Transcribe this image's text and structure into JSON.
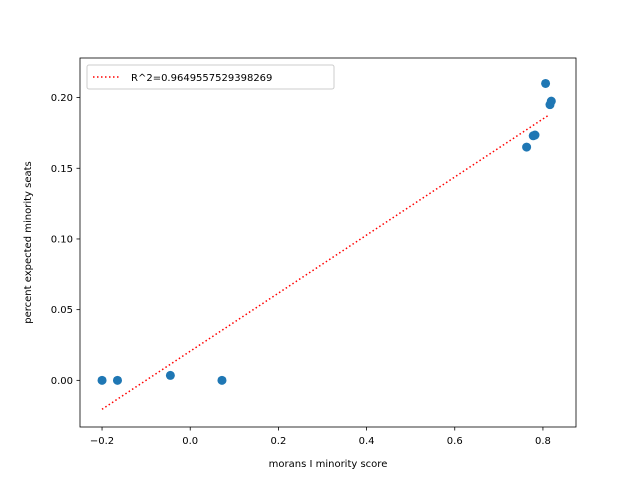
{
  "chart_data": {
    "type": "scatter",
    "title": "",
    "xlabel": "morans I minority score",
    "ylabel": "percent expected minority seats",
    "xlim": [
      -0.25,
      0.875
    ],
    "ylim": [
      -0.033,
      0.228
    ],
    "x_ticks": [
      -0.2,
      0.0,
      0.2,
      0.4,
      0.6,
      0.8
    ],
    "x_tick_labels": [
      "−0.2",
      "0.0",
      "0.2",
      "0.4",
      "0.6",
      "0.8"
    ],
    "y_ticks": [
      0.0,
      0.05,
      0.1,
      0.15,
      0.2
    ],
    "y_tick_labels": [
      "0.00",
      "0.05",
      "0.10",
      "0.15",
      "0.20"
    ],
    "grid": false,
    "legend_position": "top-left",
    "series": [
      {
        "kind": "scatter",
        "color": "#1f77b4",
        "points": [
          {
            "x": -0.2,
            "y": 0.0
          },
          {
            "x": -0.165,
            "y": 0.0
          },
          {
            "x": -0.045,
            "y": 0.0035
          },
          {
            "x": 0.072,
            "y": 0.0
          },
          {
            "x": 0.763,
            "y": 0.165
          },
          {
            "x": 0.778,
            "y": 0.173
          },
          {
            "x": 0.782,
            "y": 0.1735
          },
          {
            "x": 0.806,
            "y": 0.21
          },
          {
            "x": 0.816,
            "y": 0.195
          },
          {
            "x": 0.819,
            "y": 0.1975
          }
        ]
      },
      {
        "kind": "line",
        "name": "R^2=0.9649557529398269",
        "color": "#ff0000",
        "style": "dotted",
        "x": [
          -0.2,
          0.815
        ],
        "y": [
          -0.0205,
          0.188
        ]
      }
    ]
  }
}
